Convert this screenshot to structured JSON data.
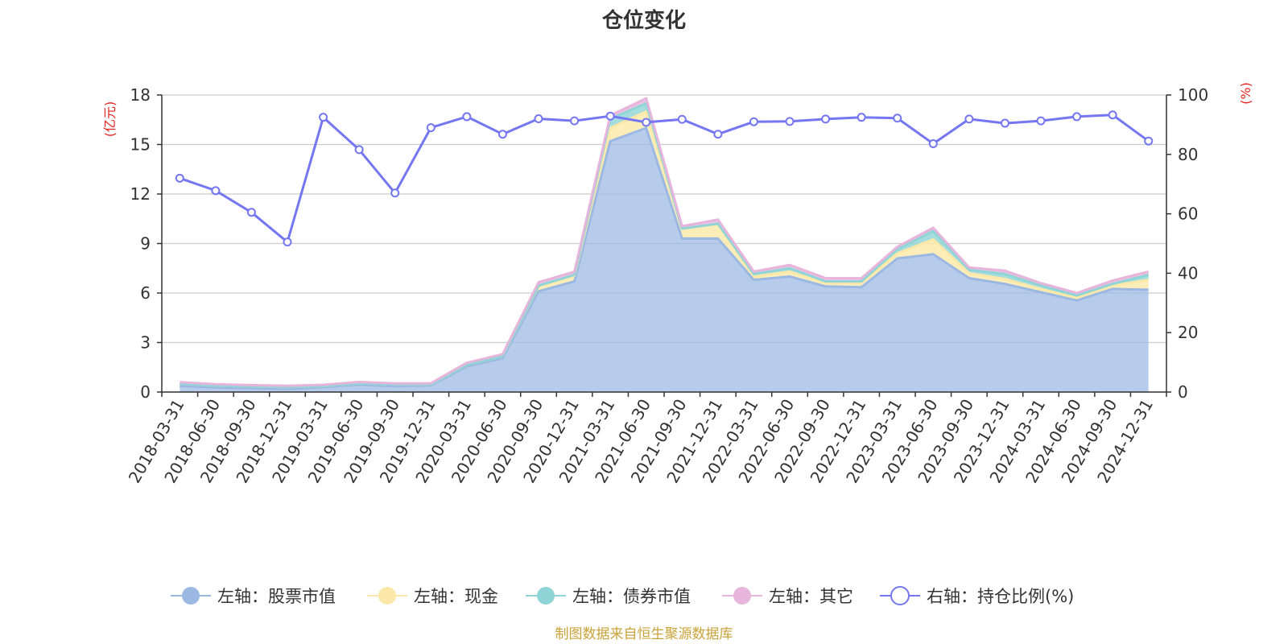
{
  "colors": {
    "stock": "#9bb8e3",
    "cash": "#fce8a8",
    "bond": "#8fd5d7",
    "other": "#e7b4dc",
    "ratio": "#7476f2",
    "unit": "#e8231e",
    "source": "#c9a23a"
  },
  "chart_data": {
    "type": "area",
    "title": "仓位变化",
    "left_axis": {
      "unit": "(亿元)",
      "ylim": [
        0,
        18
      ],
      "ticks": [
        "0",
        "3",
        "6",
        "9",
        "12",
        "15",
        "18"
      ]
    },
    "right_axis": {
      "unit": "(%)",
      "ylim": [
        0,
        100
      ],
      "ticks": [
        "0",
        "20",
        "40",
        "60",
        "80",
        "100"
      ]
    },
    "categories": [
      "2018-03-31",
      "2018-06-30",
      "2018-09-30",
      "2018-12-31",
      "2019-03-31",
      "2019-06-30",
      "2019-09-30",
      "2019-12-31",
      "2020-03-31",
      "2020-06-30",
      "2020-09-30",
      "2020-12-31",
      "2021-03-31",
      "2021-06-30",
      "2021-09-30",
      "2021-12-31",
      "2022-03-31",
      "2022-06-30",
      "2022-09-30",
      "2022-12-31",
      "2023-03-31",
      "2023-06-30",
      "2023-09-30",
      "2023-12-31",
      "2024-03-31",
      "2024-06-30",
      "2024-09-30",
      "2024-12-31"
    ],
    "series": [
      {
        "name": "左轴：股票市值",
        "axis": "left",
        "stack": true,
        "values": [
          0.38,
          0.28,
          0.24,
          0.18,
          0.3,
          0.45,
          0.35,
          0.4,
          1.55,
          2.05,
          6.1,
          6.7,
          15.2,
          16.0,
          9.3,
          9.3,
          6.8,
          7.0,
          6.4,
          6.35,
          8.1,
          8.35,
          6.9,
          6.55,
          6.05,
          5.55,
          6.25,
          6.2
        ]
      },
      {
        "name": "左轴：现金",
        "axis": "left",
        "stack": true,
        "values": [
          0.12,
          0.1,
          0.1,
          0.12,
          0.06,
          0.08,
          0.1,
          0.06,
          0.1,
          0.12,
          0.3,
          0.35,
          0.8,
          1.0,
          0.6,
          0.85,
          0.2,
          0.3,
          0.2,
          0.25,
          0.3,
          0.9,
          0.3,
          0.3,
          0.2,
          0.15,
          0.2,
          0.6
        ]
      },
      {
        "name": "左轴：债券市值",
        "axis": "left",
        "stack": true,
        "values": [
          0,
          0,
          0,
          0,
          0,
          0,
          0,
          0,
          0,
          0,
          0.05,
          0.05,
          0.55,
          0.5,
          0,
          0.05,
          0.15,
          0.2,
          0.1,
          0.1,
          0.25,
          0.5,
          0.2,
          0.3,
          0.2,
          0.15,
          0.1,
          0.3
        ]
      },
      {
        "name": "左轴：其它",
        "axis": "left",
        "stack": true,
        "values": [
          0.1,
          0.1,
          0.08,
          0.08,
          0.08,
          0.08,
          0.07,
          0.07,
          0.12,
          0.13,
          0.2,
          0.2,
          0.2,
          0.3,
          0.15,
          0.25,
          0.15,
          0.2,
          0.2,
          0.2,
          0.15,
          0.2,
          0.15,
          0.2,
          0.15,
          0.15,
          0.2,
          0.2
        ]
      },
      {
        "name": "右轴：持仓比例(%)",
        "axis": "right",
        "stack": false,
        "values": [
          72.0,
          67.8,
          60.5,
          50.5,
          92.5,
          81.6,
          67.0,
          89.0,
          92.7,
          86.8,
          92.0,
          91.3,
          92.9,
          90.8,
          91.8,
          86.8,
          91.0,
          91.1,
          91.9,
          92.5,
          92.2,
          83.6,
          91.9,
          90.5,
          91.3,
          92.7,
          93.3,
          84.5
        ]
      }
    ],
    "legend": [
      "左轴：股票市值",
      "左轴：现金",
      "左轴：债券市值",
      "左轴：其它",
      "右轴：持仓比例(%)"
    ],
    "legend_position": "bottom-center",
    "grid": true
  },
  "source_note": "制图数据来自恒生聚源数据库"
}
